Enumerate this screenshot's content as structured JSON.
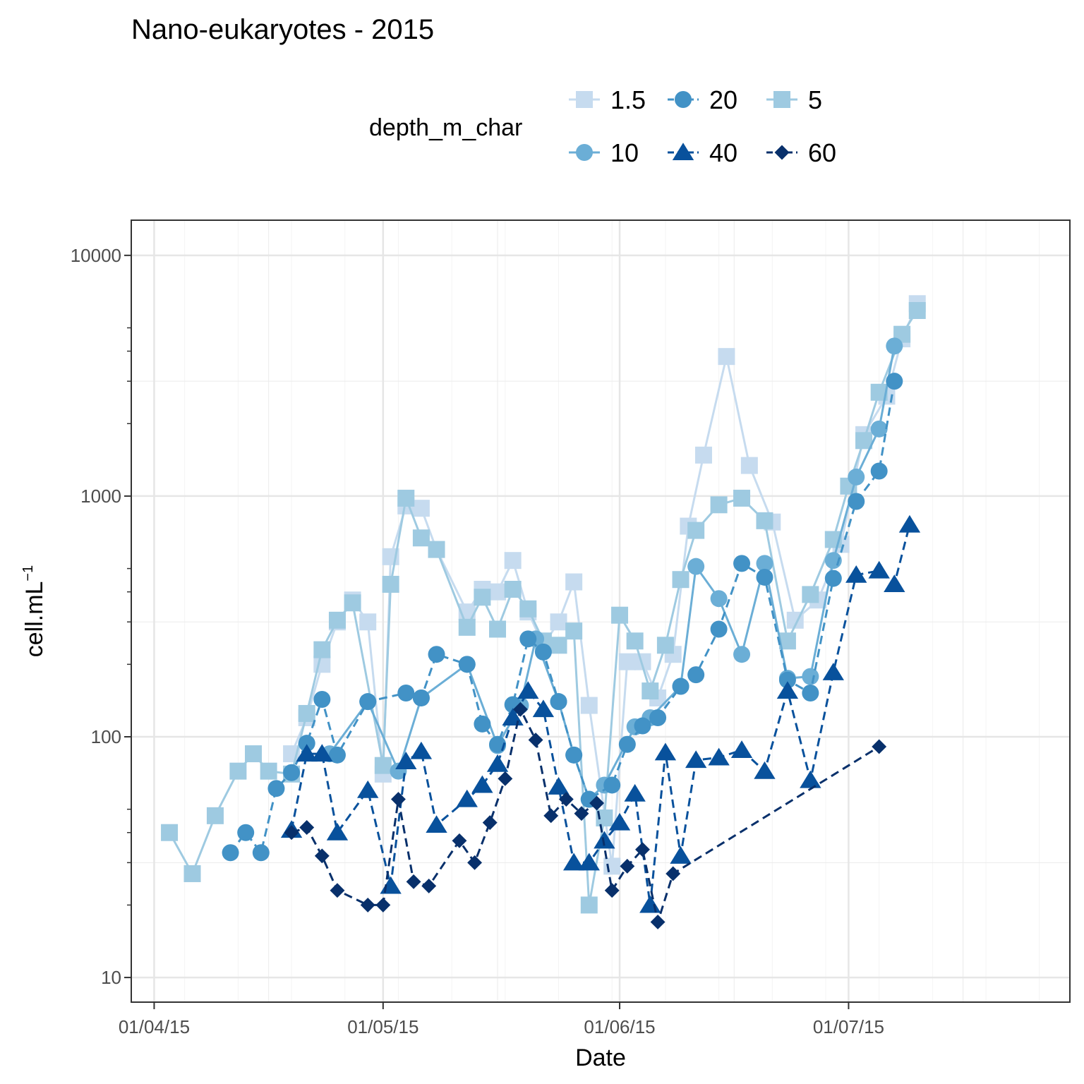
{
  "chart_data": {
    "type": "line",
    "title": "Nano-eukaryotes - 2015",
    "xlabel": "Date",
    "ylabel": "cell.mL",
    "ylabel_superscript": "−1",
    "x_scale": "date",
    "y_scale": "log10",
    "xlim": [
      "2015-03-29",
      "2015-07-30"
    ],
    "ylim": [
      7.9,
      14000
    ],
    "x_ticks": [
      {
        "date": "2015-04-01",
        "label": "01/04/15"
      },
      {
        "date": "2015-05-01",
        "label": "01/05/15"
      },
      {
        "date": "2015-06-01",
        "label": "01/06/15"
      },
      {
        "date": "2015-07-01",
        "label": "01/07/15"
      }
    ],
    "y_ticks": [
      {
        "value": 10,
        "label": "10"
      },
      {
        "value": 100,
        "label": "100"
      },
      {
        "value": 1000,
        "label": "1000"
      },
      {
        "value": 10000,
        "label": "10000"
      }
    ],
    "grid": true,
    "legend": {
      "title": "depth_m_char",
      "position": "top",
      "rows": [
        [
          "1.5",
          "20",
          "5"
        ],
        [
          "10",
          "40",
          "60"
        ]
      ]
    },
    "series": [
      {
        "name": "1.5",
        "color": "#c6dbef",
        "shape": "square",
        "line": "solid",
        "points": [
          [
            "2015-04-19",
            85
          ],
          [
            "2015-04-21",
            120
          ],
          [
            "2015-04-23",
            200
          ],
          [
            "2015-04-25",
            300
          ],
          [
            "2015-04-27",
            370
          ],
          [
            "2015-04-29",
            300
          ],
          [
            "2015-05-01",
            70
          ],
          [
            "2015-05-02",
            560
          ],
          [
            "2015-05-04",
            910
          ],
          [
            "2015-05-06",
            890
          ],
          [
            "2015-05-08",
            600
          ],
          [
            "2015-05-12",
            330
          ],
          [
            "2015-05-14",
            410
          ],
          [
            "2015-05-16",
            400
          ],
          [
            "2015-05-18",
            540
          ],
          [
            "2015-05-20",
            330
          ],
          [
            "2015-05-22",
            240
          ],
          [
            "2015-05-24",
            300
          ],
          [
            "2015-05-26",
            440
          ],
          [
            "2015-05-28",
            135
          ],
          [
            "2015-05-31",
            29
          ],
          [
            "2015-06-02",
            205
          ],
          [
            "2015-06-04",
            205
          ],
          [
            "2015-06-06",
            145
          ],
          [
            "2015-06-08",
            220
          ],
          [
            "2015-06-10",
            750
          ],
          [
            "2015-06-12",
            1480
          ],
          [
            "2015-06-15",
            3800
          ],
          [
            "2015-06-18",
            1340
          ],
          [
            "2015-06-21",
            780
          ],
          [
            "2015-06-24",
            305
          ],
          [
            "2015-06-27",
            370
          ],
          [
            "2015-06-30",
            630
          ],
          [
            "2015-07-03",
            1800
          ],
          [
            "2015-07-06",
            2600
          ],
          [
            "2015-07-08",
            4500
          ],
          [
            "2015-07-10",
            6300
          ]
        ]
      },
      {
        "name": "5",
        "color": "#9ecae1",
        "shape": "square",
        "line": "solid",
        "points": [
          [
            "2015-04-03",
            40
          ],
          [
            "2015-04-06",
            27
          ],
          [
            "2015-04-09",
            47
          ],
          [
            "2015-04-12",
            72
          ],
          [
            "2015-04-14",
            85
          ],
          [
            "2015-04-16",
            72
          ],
          [
            "2015-04-19",
            70
          ],
          [
            "2015-04-21",
            125
          ],
          [
            "2015-04-23",
            230
          ],
          [
            "2015-04-25",
            305
          ],
          [
            "2015-04-27",
            360
          ],
          [
            "2015-05-01",
            76
          ],
          [
            "2015-05-02",
            430
          ],
          [
            "2015-05-04",
            980
          ],
          [
            "2015-05-06",
            670
          ],
          [
            "2015-05-08",
            600
          ],
          [
            "2015-05-12",
            285
          ],
          [
            "2015-05-14",
            380
          ],
          [
            "2015-05-16",
            280
          ],
          [
            "2015-05-18",
            410
          ],
          [
            "2015-05-20",
            340
          ],
          [
            "2015-05-22",
            250
          ],
          [
            "2015-05-24",
            240
          ],
          [
            "2015-05-26",
            275
          ],
          [
            "2015-05-28",
            20
          ],
          [
            "2015-05-30",
            46
          ],
          [
            "2015-06-01",
            320
          ],
          [
            "2015-06-03",
            250
          ],
          [
            "2015-06-05",
            155
          ],
          [
            "2015-06-07",
            240
          ],
          [
            "2015-06-09",
            450
          ],
          [
            "2015-06-11",
            720
          ],
          [
            "2015-06-14",
            920
          ],
          [
            "2015-06-17",
            980
          ],
          [
            "2015-06-20",
            790
          ],
          [
            "2015-06-23",
            250
          ],
          [
            "2015-06-26",
            390
          ],
          [
            "2015-06-29",
            660
          ],
          [
            "2015-07-01",
            1100
          ],
          [
            "2015-07-03",
            1700
          ],
          [
            "2015-07-05",
            2700
          ],
          [
            "2015-07-08",
            4700
          ],
          [
            "2015-07-10",
            5900
          ]
        ]
      },
      {
        "name": "10",
        "color": "#6baed6",
        "shape": "circle",
        "line": "solid",
        "points": [
          [
            "2015-04-24",
            85
          ],
          [
            "2015-04-29",
            140
          ],
          [
            "2015-05-03",
            72
          ],
          [
            "2015-05-06",
            145
          ],
          [
            "2015-05-12",
            200
          ],
          [
            "2015-05-16",
            92
          ],
          [
            "2015-05-19",
            135
          ],
          [
            "2015-05-21",
            255
          ],
          [
            "2015-05-24",
            140
          ],
          [
            "2015-05-26",
            84
          ],
          [
            "2015-05-28",
            55
          ],
          [
            "2015-05-30",
            63
          ],
          [
            "2015-06-03",
            110
          ],
          [
            "2015-06-05",
            120
          ],
          [
            "2015-06-09",
            162
          ],
          [
            "2015-06-11",
            510
          ],
          [
            "2015-06-14",
            375
          ],
          [
            "2015-06-17",
            220
          ],
          [
            "2015-06-20",
            525
          ],
          [
            "2015-06-23",
            175
          ],
          [
            "2015-06-26",
            178
          ],
          [
            "2015-06-29",
            540
          ],
          [
            "2015-07-02",
            1200
          ],
          [
            "2015-07-05",
            1900
          ],
          [
            "2015-07-07",
            4200
          ]
        ]
      },
      {
        "name": "20",
        "color": "#4292c6",
        "shape": "circle",
        "line": "dashed",
        "points": [
          [
            "2015-04-11",
            33
          ],
          [
            "2015-04-13",
            40
          ],
          [
            "2015-04-15",
            33
          ],
          [
            "2015-04-17",
            61
          ],
          [
            "2015-04-19",
            71
          ],
          [
            "2015-04-21",
            94
          ],
          [
            "2015-04-23",
            143
          ],
          [
            "2015-04-25",
            84
          ],
          [
            "2015-04-29",
            140
          ],
          [
            "2015-05-04",
            152
          ],
          [
            "2015-05-06",
            145
          ],
          [
            "2015-05-08",
            220
          ],
          [
            "2015-05-12",
            200
          ],
          [
            "2015-05-14",
            113
          ],
          [
            "2015-05-16",
            93
          ],
          [
            "2015-05-18",
            136
          ],
          [
            "2015-05-20",
            255
          ],
          [
            "2015-05-22",
            225
          ],
          [
            "2015-05-24",
            140
          ],
          [
            "2015-05-26",
            84
          ],
          [
            "2015-05-28",
            55
          ],
          [
            "2015-05-31",
            63
          ],
          [
            "2015-06-02",
            93
          ],
          [
            "2015-06-04",
            111
          ],
          [
            "2015-06-06",
            120
          ],
          [
            "2015-06-09",
            162
          ],
          [
            "2015-06-11",
            181
          ],
          [
            "2015-06-14",
            280
          ],
          [
            "2015-06-17",
            525
          ],
          [
            "2015-06-20",
            460
          ],
          [
            "2015-06-23",
            172
          ],
          [
            "2015-06-26",
            152
          ],
          [
            "2015-06-29",
            455
          ],
          [
            "2015-07-02",
            950
          ],
          [
            "2015-07-05",
            1270
          ],
          [
            "2015-07-07",
            3000
          ]
        ]
      },
      {
        "name": "40",
        "color": "#08519c",
        "shape": "triangle",
        "line": "dashed",
        "points": [
          [
            "2015-04-19",
            41
          ],
          [
            "2015-04-21",
            85
          ],
          [
            "2015-04-23",
            85
          ],
          [
            "2015-04-25",
            40
          ],
          [
            "2015-04-29",
            60
          ],
          [
            "2015-05-02",
            24
          ],
          [
            "2015-05-04",
            79
          ],
          [
            "2015-05-06",
            87
          ],
          [
            "2015-05-08",
            43
          ],
          [
            "2015-05-12",
            55
          ],
          [
            "2015-05-14",
            63
          ],
          [
            "2015-05-16",
            77
          ],
          [
            "2015-05-18",
            120
          ],
          [
            "2015-05-20",
            155
          ],
          [
            "2015-05-22",
            130
          ],
          [
            "2015-05-24",
            62
          ],
          [
            "2015-05-26",
            30
          ],
          [
            "2015-05-28",
            30
          ],
          [
            "2015-05-30",
            37
          ],
          [
            "2015-06-01",
            44
          ],
          [
            "2015-06-03",
            58
          ],
          [
            "2015-06-05",
            20
          ],
          [
            "2015-06-07",
            86
          ],
          [
            "2015-06-09",
            32
          ],
          [
            "2015-06-11",
            80
          ],
          [
            "2015-06-14",
            82
          ],
          [
            "2015-06-17",
            88
          ],
          [
            "2015-06-20",
            72
          ],
          [
            "2015-06-23",
            155
          ],
          [
            "2015-06-26",
            66
          ],
          [
            "2015-06-29",
            185
          ],
          [
            "2015-07-02",
            470
          ],
          [
            "2015-07-05",
            490
          ],
          [
            "2015-07-07",
            430
          ],
          [
            "2015-07-09",
            760
          ]
        ]
      },
      {
        "name": "60",
        "color": "#08306b",
        "shape": "diamond",
        "line": "dashed",
        "points": [
          [
            "2015-04-19",
            40
          ],
          [
            "2015-04-21",
            42
          ],
          [
            "2015-04-23",
            32
          ],
          [
            "2015-04-25",
            23
          ],
          [
            "2015-04-29",
            20
          ],
          [
            "2015-05-01",
            20
          ],
          [
            "2015-05-03",
            55
          ],
          [
            "2015-05-05",
            25
          ],
          [
            "2015-05-07",
            24
          ],
          [
            "2015-05-11",
            37
          ],
          [
            "2015-05-13",
            30
          ],
          [
            "2015-05-15",
            44
          ],
          [
            "2015-05-17",
            67
          ],
          [
            "2015-05-19",
            130
          ],
          [
            "2015-05-21",
            97
          ],
          [
            "2015-05-23",
            47
          ],
          [
            "2015-05-25",
            55
          ],
          [
            "2015-05-27",
            48
          ],
          [
            "2015-05-29",
            53
          ],
          [
            "2015-05-31",
            23
          ],
          [
            "2015-06-02",
            29
          ],
          [
            "2015-06-04",
            34
          ],
          [
            "2015-06-06",
            17
          ],
          [
            "2015-06-08",
            27
          ],
          [
            "2015-07-05",
            91
          ]
        ]
      }
    ]
  }
}
